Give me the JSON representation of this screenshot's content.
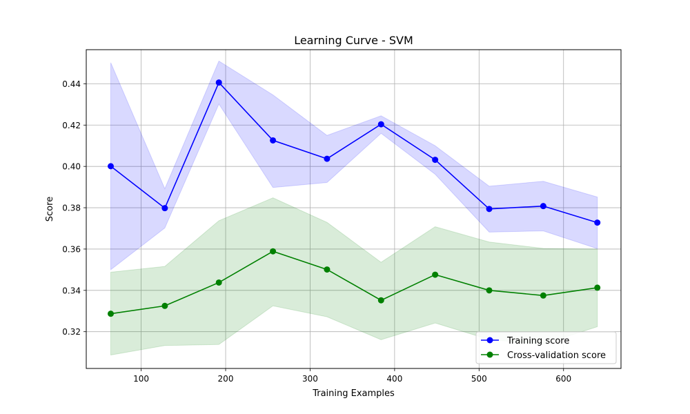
{
  "chart_data": {
    "type": "line",
    "title": "Learning Curve - SVM",
    "xlabel": "Training Examples",
    "ylabel": "Score",
    "xlim": [
      35,
      668
    ],
    "ylim": [
      0.3022,
      0.4565
    ],
    "xticks": [
      100,
      200,
      300,
      400,
      500,
      600
    ],
    "yticks": [
      0.32,
      0.34,
      0.36,
      0.38,
      0.4,
      0.42,
      0.44
    ],
    "xtick_labels": [
      "100",
      "200",
      "300",
      "400",
      "500",
      "600"
    ],
    "ytick_labels": [
      "0.32",
      "0.34",
      "0.36",
      "0.38",
      "0.40",
      "0.42",
      "0.44"
    ],
    "grid": true,
    "legend_position": "lower-right",
    "x": [
      64,
      128,
      192,
      256,
      320,
      384,
      448,
      512,
      576,
      640
    ],
    "series": [
      {
        "name": "Training score",
        "color": "#0000ff",
        "band_color": "#0000ff",
        "values": [
          0.4001,
          0.3798,
          0.4406,
          0.4126,
          0.4037,
          0.4204,
          0.4032,
          0.3794,
          0.3808,
          0.3728
        ],
        "lower": [
          0.35,
          0.3702,
          0.4302,
          0.3898,
          0.3922,
          0.416,
          0.3962,
          0.3682,
          0.3688,
          0.3602
        ],
        "upper": [
          0.4502,
          0.3892,
          0.451,
          0.4346,
          0.415,
          0.4245,
          0.41,
          0.3904,
          0.3928,
          0.3852
        ]
      },
      {
        "name": "Cross-validation score",
        "color": "#008000",
        "band_color": "#008000",
        "values": [
          0.3287,
          0.3325,
          0.3438,
          0.3589,
          0.3501,
          0.3352,
          0.3476,
          0.34,
          0.3375,
          0.3413
        ],
        "lower": [
          0.3087,
          0.3133,
          0.3138,
          0.3325,
          0.3272,
          0.3161,
          0.3242,
          0.3162,
          0.314,
          0.3224
        ],
        "upper": [
          0.3488,
          0.3516,
          0.3737,
          0.3848,
          0.3729,
          0.3536,
          0.3708,
          0.3634,
          0.3603,
          0.36
        ]
      }
    ]
  }
}
